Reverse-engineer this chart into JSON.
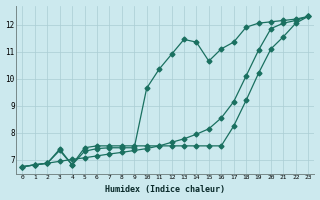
{
  "xlabel": "Humidex (Indice chaleur)",
  "bg_color": "#cce9ee",
  "grid_color": "#aacdd4",
  "line_color": "#1a7060",
  "xlim": [
    -0.5,
    23.5
  ],
  "ylim": [
    6.5,
    12.7
  ],
  "yticks": [
    7,
    8,
    9,
    10,
    11,
    12
  ],
  "xticks": [
    0,
    1,
    2,
    3,
    4,
    5,
    6,
    7,
    8,
    9,
    10,
    11,
    12,
    13,
    14,
    15,
    16,
    17,
    18,
    19,
    20,
    21,
    22,
    23
  ],
  "line1_x": [
    0,
    1,
    2,
    3,
    4,
    5,
    6,
    7,
    8,
    9,
    10,
    11,
    12,
    13,
    14,
    15,
    16,
    17,
    18,
    19,
    20,
    21,
    22,
    23
  ],
  "line1_y": [
    6.75,
    6.82,
    6.88,
    6.95,
    7.02,
    7.08,
    7.15,
    7.22,
    7.28,
    7.35,
    7.42,
    7.52,
    7.65,
    7.78,
    7.95,
    8.15,
    8.55,
    9.15,
    10.1,
    11.05,
    11.85,
    12.05,
    12.15,
    12.3
  ],
  "line2_x": [
    0,
    1,
    2,
    3,
    4,
    5,
    6,
    7,
    8,
    9,
    10,
    11,
    12,
    13,
    14,
    15,
    16,
    17,
    18,
    19,
    20,
    21,
    22,
    23
  ],
  "line2_y": [
    6.75,
    6.82,
    6.88,
    7.4,
    6.82,
    7.45,
    7.52,
    7.52,
    7.52,
    7.52,
    7.52,
    7.52,
    7.52,
    7.52,
    7.52,
    7.52,
    7.52,
    8.25,
    9.2,
    10.2,
    11.1,
    11.55,
    12.05,
    12.3
  ],
  "line3_x": [
    0,
    1,
    2,
    3,
    4,
    5,
    6,
    7,
    8,
    9,
    10,
    11,
    12,
    13,
    14,
    15,
    16,
    17,
    18,
    19,
    20,
    21,
    22,
    23
  ],
  "line3_y": [
    6.75,
    6.82,
    6.88,
    7.35,
    6.82,
    7.32,
    7.42,
    7.45,
    7.45,
    7.45,
    9.65,
    10.35,
    10.9,
    11.45,
    11.35,
    10.65,
    11.1,
    11.35,
    11.9,
    12.05,
    12.1,
    12.15,
    12.2,
    12.3
  ]
}
